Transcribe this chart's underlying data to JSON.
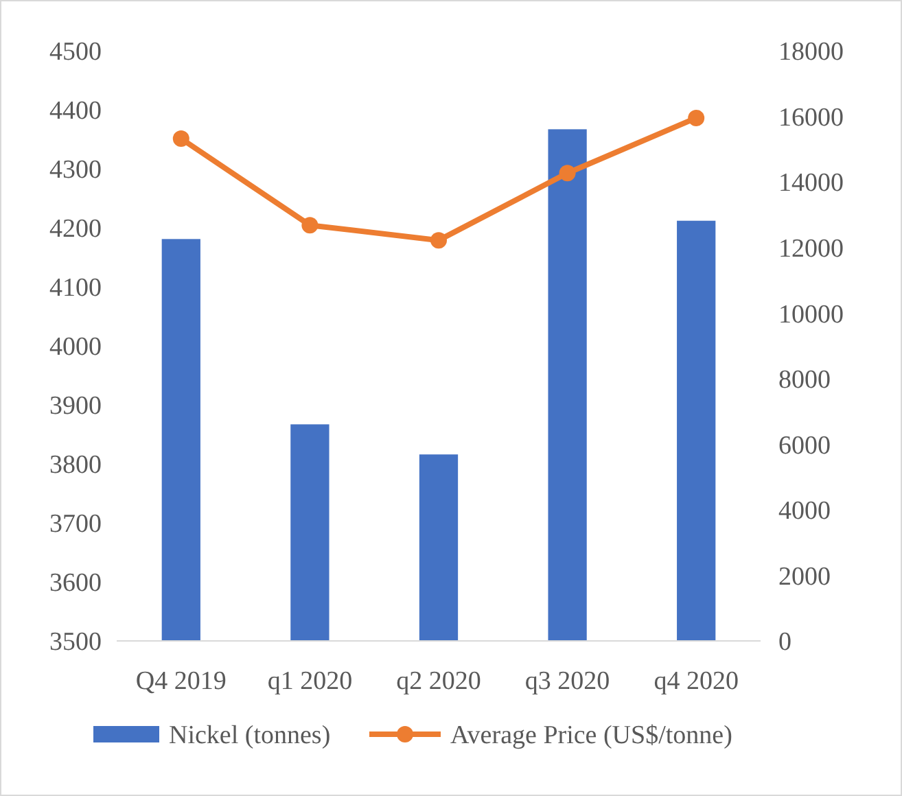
{
  "chart_data": {
    "type": "bar",
    "categories": [
      "Q4 2019",
      "q1 2020",
      "q2 2020",
      "q3 2020",
      "q4 2020"
    ],
    "series": [
      {
        "name": "Nickel (tonnes)",
        "color": "#4472c4",
        "values": [
          4181,
          3867,
          3816,
          4367,
          4212
        ]
      },
      {
        "name": "Average Price (US$/tonne)",
        "color": "#ed7d31",
        "type": "line",
        "axis": "y2",
        "values": [
          15320,
          12680,
          12220,
          14270,
          15950
        ]
      }
    ],
    "ylim": [
      3500,
      4500
    ],
    "yticks": [
      3500,
      3600,
      3700,
      3800,
      3900,
      4000,
      4100,
      4200,
      4300,
      4400,
      4500
    ],
    "y2lim": [
      0,
      18000
    ],
    "y2ticks": [
      0,
      2000,
      4000,
      6000,
      8000,
      10000,
      12000,
      14000,
      16000,
      18000
    ],
    "grid": false,
    "legend": "bottom",
    "marker": "circle",
    "line_style": "solid"
  }
}
